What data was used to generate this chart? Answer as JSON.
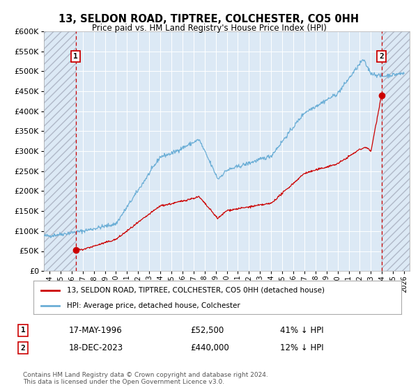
{
  "title": "13, SELDON ROAD, TIPTREE, COLCHESTER, CO5 0HH",
  "subtitle": "Price paid vs. HM Land Registry's House Price Index (HPI)",
  "legend_line1": "13, SELDON ROAD, TIPTREE, COLCHESTER, CO5 0HH (detached house)",
  "legend_line2": "HPI: Average price, detached house, Colchester",
  "annotation1_label": "1",
  "annotation1_date": "17-MAY-1996",
  "annotation1_price": "£52,500",
  "annotation1_hpi": "41% ↓ HPI",
  "annotation2_label": "2",
  "annotation2_date": "18-DEC-2023",
  "annotation2_price": "£440,000",
  "annotation2_hpi": "12% ↓ HPI",
  "footer": "Contains HM Land Registry data © Crown copyright and database right 2024.\nThis data is licensed under the Open Government Licence v3.0.",
  "sale1_year": 1996.38,
  "sale1_price": 52500,
  "sale2_year": 2023.96,
  "sale2_price": 440000,
  "hpi_color": "#6baed6",
  "property_color": "#cc0000",
  "dashed_line_color": "#cc0000",
  "plot_bg_color": "#dce9f5",
  "grid_color": "#ffffff",
  "fig_bg_color": "#ffffff",
  "hatch_color": "#b0b8c8",
  "ylim": [
    0,
    600000
  ],
  "xlim_start": 1993.5,
  "xlim_end": 2026.5,
  "yticks": [
    0,
    50000,
    100000,
    150000,
    200000,
    250000,
    300000,
    350000,
    400000,
    450000,
    500000,
    550000,
    600000
  ]
}
